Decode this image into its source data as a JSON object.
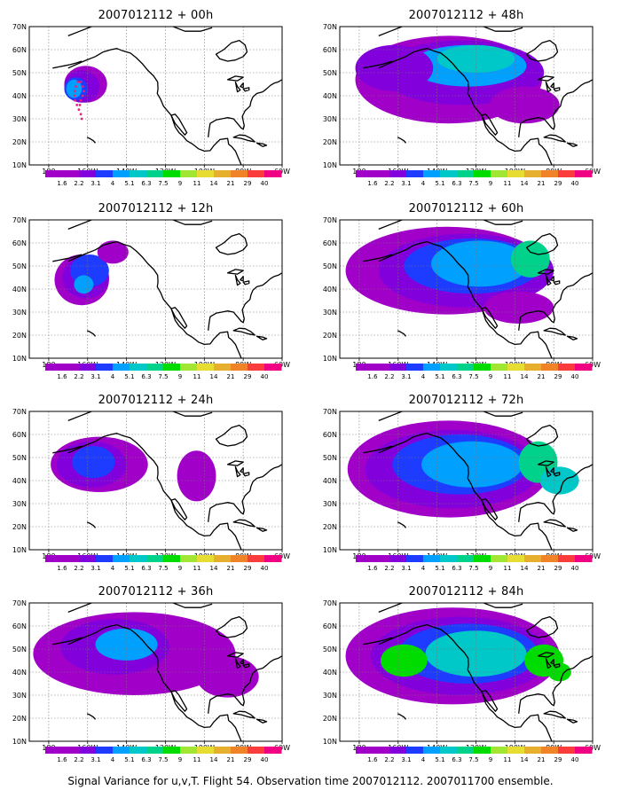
{
  "panels": [
    {
      "title": "2007012112 + 00h",
      "lead_hours": 0
    },
    {
      "title": "2007012112 + 48h",
      "lead_hours": 48
    },
    {
      "title": "2007012112 + 12h",
      "lead_hours": 12
    },
    {
      "title": "2007012112 + 60h",
      "lead_hours": 60
    },
    {
      "title": "2007012112 + 24h",
      "lead_hours": 24
    },
    {
      "title": "2007012112 + 72h",
      "lead_hours": 72
    },
    {
      "title": "2007012112 + 36h",
      "lead_hours": 36
    },
    {
      "title": "2007012112 + 84h",
      "lead_hours": 84
    }
  ],
  "map": {
    "lon_range": [
      170,
      300
    ],
    "lat_range": [
      10,
      70
    ],
    "lat_labels": [
      "10N",
      "20N",
      "30N",
      "40N",
      "50N",
      "60N",
      "70N"
    ],
    "lon_labels": [
      "180",
      "160W",
      "140W",
      "120W",
      "100W",
      "80W",
      "60W"
    ],
    "grid": true
  },
  "colorbar": {
    "labels": [
      "1.6",
      "2.2",
      "3.1",
      "4",
      "5.1",
      "6.3",
      "7.5",
      "9",
      "11",
      "14",
      "21",
      "29",
      "40"
    ],
    "colors": [
      "#a000c8",
      "#8200dc",
      "#1e3cff",
      "#00a0ff",
      "#00c8c8",
      "#00d28c",
      "#00dc00",
      "#a0e632",
      "#e6dc32",
      "#e6af2d",
      "#f08228",
      "#fa3c3c",
      "#f00082"
    ]
  },
  "caption": "Signal Variance for u,v,T. Flight 54. Observation time 2007012112. 2007011700 ensemble."
}
